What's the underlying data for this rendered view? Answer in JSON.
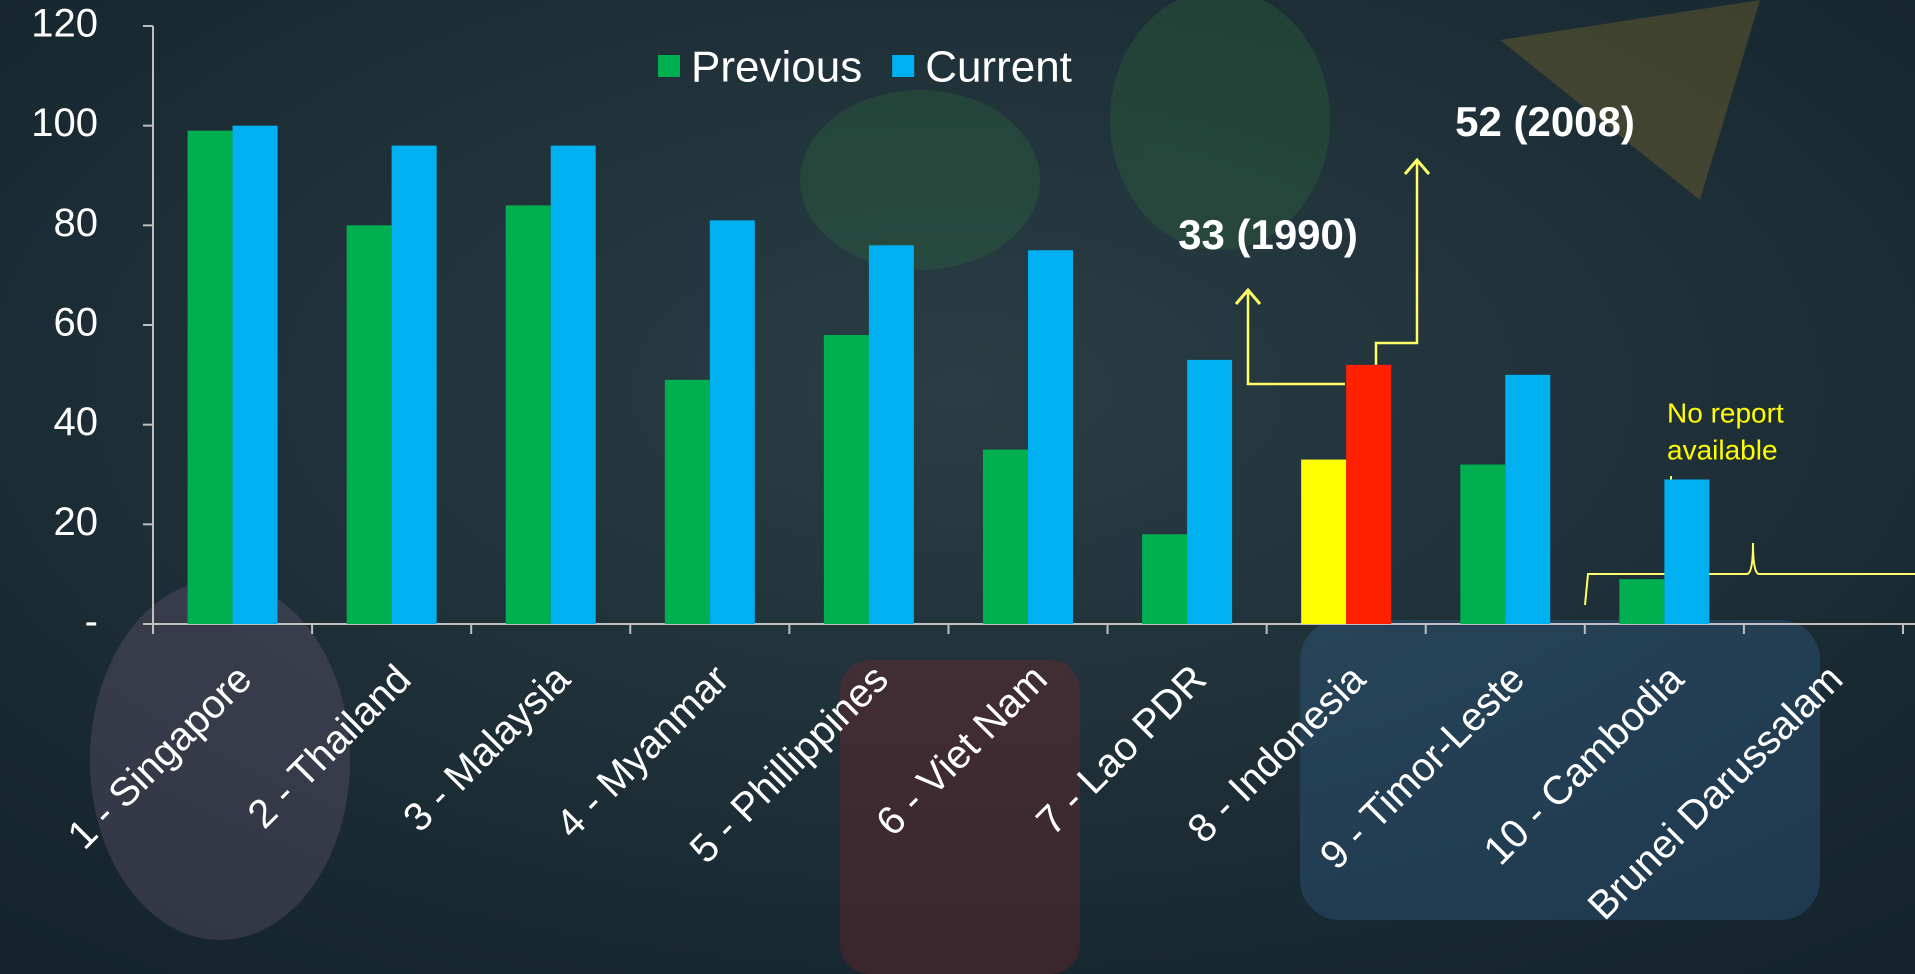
{
  "chart_data": {
    "type": "bar",
    "categories": [
      "1 - Singapore",
      "2 - Thailand",
      "3 - Malaysia",
      "4 - Myanmar",
      "5 - Phillippines",
      "6 - Viet Nam",
      "7 - Lao PDR",
      "8 - Indonesia",
      "9 - Timor-Leste",
      "10 - Cambodia",
      "Brunei Darussalam"
    ],
    "series": [
      {
        "name": "Previous",
        "color": "#00b050",
        "values": [
          99,
          80,
          84,
          49,
          58,
          35,
          18,
          33,
          32,
          9,
          null
        ],
        "colors": [
          "#00b050",
          "#00b050",
          "#00b050",
          "#00b050",
          "#00b050",
          "#00b050",
          "#00b050",
          "#ffff00",
          "#00b050",
          "#00b050",
          "#00b050"
        ]
      },
      {
        "name": "Current",
        "color": "#00b0f0",
        "values": [
          100,
          96,
          96,
          81,
          76,
          75,
          53,
          52,
          50,
          29,
          null
        ],
        "colors": [
          "#00b0f0",
          "#00b0f0",
          "#00b0f0",
          "#00b0f0",
          "#00b0f0",
          "#00b0f0",
          "#00b0f0",
          "#ff2000",
          "#00b0f0",
          "#00b0f0",
          "#00b0f0"
        ]
      }
    ],
    "ylim": [
      0,
      120
    ],
    "yticks": [
      {
        "value": 0,
        "label": "-"
      },
      20,
      40,
      60,
      80,
      100,
      120
    ],
    "grid": false,
    "legend": "top",
    "annotations": [
      {
        "text": "33 (1990)",
        "color": "#ffffff"
      },
      {
        "text": "52 (2008)",
        "color": "#ffffff"
      },
      {
        "lines": [
          "No report",
          "available"
        ],
        "color": "#ffff00"
      }
    ]
  }
}
